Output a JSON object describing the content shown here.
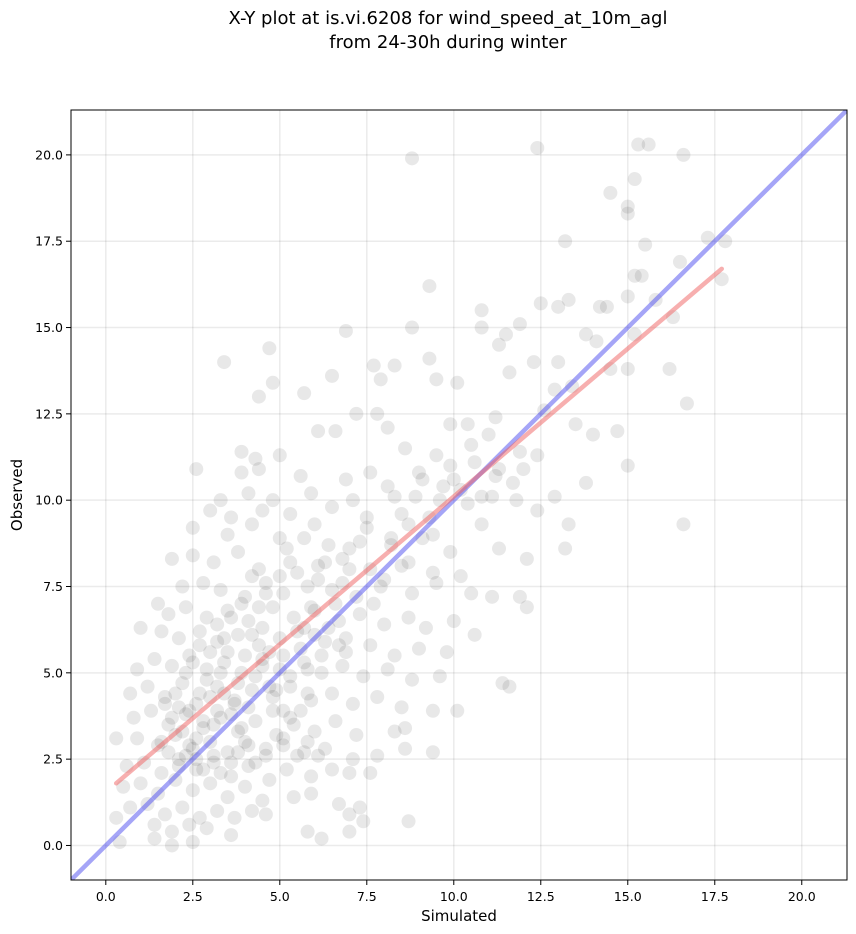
{
  "chart_data": {
    "type": "scatter",
    "title_line1": "X-Y plot at is.vi.6208 for wind_speed_at_10m_agl",
    "title_line2": "from 24-30h during winter",
    "xlabel": "Simulated",
    "ylabel": "Observed",
    "xlim": [
      -1.0,
      21.3
    ],
    "ylim": [
      -1.0,
      21.3
    ],
    "xticks": [
      "0.0",
      "2.5",
      "5.0",
      "7.5",
      "10.0",
      "12.5",
      "15.0",
      "17.5",
      "20.0"
    ],
    "yticks": [
      "0.0",
      "2.5",
      "5.0",
      "7.5",
      "10.0",
      "12.5",
      "15.0",
      "17.5",
      "20.0"
    ],
    "grid": true,
    "colors": {
      "points": "#000000",
      "one_to_one_line": "#4c4cf0",
      "fit_line": "#f06060"
    },
    "lines": [
      {
        "role": "one-to-one",
        "x": [
          -1.0,
          21.3
        ],
        "y": [
          -1.0,
          21.3
        ]
      },
      {
        "role": "fit",
        "x": [
          0.3,
          17.7
        ],
        "y": [
          1.8,
          16.7
        ]
      }
    ],
    "points": [
      [
        8.8,
        19.9
      ],
      [
        12.4,
        20.2
      ],
      [
        15.3,
        20.3
      ],
      [
        15.6,
        20.3
      ],
      [
        16.6,
        20.0
      ],
      [
        15.2,
        19.3
      ],
      [
        14.5,
        18.9
      ],
      [
        15.0,
        18.5
      ],
      [
        15.0,
        18.3
      ],
      [
        17.3,
        17.6
      ],
      [
        17.8,
        17.5
      ],
      [
        13.2,
        17.5
      ],
      [
        15.5,
        17.4
      ],
      [
        16.5,
        16.9
      ],
      [
        15.2,
        16.5
      ],
      [
        15.4,
        16.5
      ],
      [
        9.3,
        16.2
      ],
      [
        17.7,
        16.4
      ],
      [
        15.0,
        15.9
      ],
      [
        15.8,
        15.8
      ],
      [
        12.5,
        15.7
      ],
      [
        13.3,
        15.8
      ],
      [
        14.2,
        15.6
      ],
      [
        14.4,
        15.6
      ],
      [
        13.0,
        15.6
      ],
      [
        10.8,
        15.5
      ],
      [
        16.3,
        15.3
      ],
      [
        11.9,
        15.1
      ],
      [
        10.8,
        15.0
      ],
      [
        8.8,
        15.0
      ],
      [
        6.9,
        14.9
      ],
      [
        11.5,
        14.8
      ],
      [
        13.8,
        14.8
      ],
      [
        15.2,
        14.8
      ],
      [
        14.1,
        14.6
      ],
      [
        11.3,
        14.5
      ],
      [
        4.7,
        14.4
      ],
      [
        9.3,
        14.1
      ],
      [
        3.4,
        14.0
      ],
      [
        13.0,
        14.0
      ],
      [
        12.3,
        14.0
      ],
      [
        11.6,
        13.7
      ],
      [
        7.7,
        13.9
      ],
      [
        8.3,
        13.9
      ],
      [
        14.5,
        13.8
      ],
      [
        15.0,
        13.8
      ],
      [
        16.2,
        13.8
      ],
      [
        5.7,
        13.1
      ],
      [
        6.5,
        13.6
      ],
      [
        7.9,
        13.5
      ],
      [
        4.4,
        13.0
      ],
      [
        4.8,
        13.4
      ],
      [
        9.5,
        13.5
      ],
      [
        10.1,
        13.4
      ],
      [
        12.9,
        13.2
      ],
      [
        13.4,
        13.3
      ],
      [
        16.7,
        12.8
      ],
      [
        7.2,
        12.5
      ],
      [
        7.8,
        12.5
      ],
      [
        12.6,
        12.6
      ],
      [
        11.2,
        12.4
      ],
      [
        10.4,
        12.2
      ],
      [
        9.9,
        12.2
      ],
      [
        6.1,
        12.0
      ],
      [
        6.6,
        12.0
      ],
      [
        8.1,
        12.1
      ],
      [
        13.5,
        12.2
      ],
      [
        14.7,
        12.0
      ],
      [
        14.0,
        11.9
      ],
      [
        3.9,
        11.4
      ],
      [
        4.3,
        11.2
      ],
      [
        5.0,
        11.3
      ],
      [
        8.6,
        11.5
      ],
      [
        9.5,
        11.3
      ],
      [
        10.6,
        11.1
      ],
      [
        11.9,
        11.4
      ],
      [
        12.4,
        11.3
      ],
      [
        3.9,
        10.8
      ],
      [
        4.4,
        10.9
      ],
      [
        5.6,
        10.7
      ],
      [
        6.9,
        10.6
      ],
      [
        7.6,
        10.8
      ],
      [
        8.1,
        10.4
      ],
      [
        9.0,
        10.8
      ],
      [
        10.0,
        10.6
      ],
      [
        11.2,
        10.7
      ],
      [
        11.7,
        10.5
      ],
      [
        12.0,
        10.9
      ],
      [
        13.8,
        10.5
      ],
      [
        15.0,
        11.0
      ],
      [
        2.6,
        10.9
      ],
      [
        3.3,
        10.0
      ],
      [
        4.1,
        10.2
      ],
      [
        4.8,
        10.0
      ],
      [
        5.9,
        10.2
      ],
      [
        6.5,
        9.8
      ],
      [
        7.1,
        10.0
      ],
      [
        8.3,
        10.1
      ],
      [
        9.6,
        10.0
      ],
      [
        10.4,
        9.9
      ],
      [
        11.1,
        10.1
      ],
      [
        11.8,
        10.0
      ],
      [
        12.9,
        10.1
      ],
      [
        3.0,
        9.7
      ],
      [
        3.6,
        9.5
      ],
      [
        4.5,
        9.7
      ],
      [
        5.3,
        9.6
      ],
      [
        6.0,
        9.3
      ],
      [
        7.5,
        9.2
      ],
      [
        8.7,
        9.3
      ],
      [
        9.3,
        9.5
      ],
      [
        10.8,
        9.3
      ],
      [
        12.4,
        9.7
      ],
      [
        13.3,
        9.3
      ],
      [
        16.6,
        9.3
      ],
      [
        2.5,
        9.2
      ],
      [
        3.5,
        9.0
      ],
      [
        4.2,
        9.3
      ],
      [
        5.0,
        8.9
      ],
      [
        5.7,
        8.9
      ],
      [
        6.4,
        8.7
      ],
      [
        7.0,
        8.6
      ],
      [
        8.2,
        8.7
      ],
      [
        9.1,
        8.9
      ],
      [
        9.9,
        8.5
      ],
      [
        11.3,
        8.6
      ],
      [
        13.2,
        8.6
      ],
      [
        12.1,
        8.3
      ],
      [
        1.9,
        8.3
      ],
      [
        2.5,
        8.4
      ],
      [
        3.1,
        8.2
      ],
      [
        3.8,
        8.5
      ],
      [
        4.4,
        8.0
      ],
      [
        5.3,
        8.2
      ],
      [
        6.1,
        8.1
      ],
      [
        6.8,
        8.3
      ],
      [
        7.6,
        8.0
      ],
      [
        8.5,
        8.1
      ],
      [
        9.4,
        7.9
      ],
      [
        10.2,
        7.8
      ],
      [
        1.5,
        7.0
      ],
      [
        2.2,
        7.5
      ],
      [
        2.8,
        7.6
      ],
      [
        3.3,
        7.4
      ],
      [
        4.0,
        7.2
      ],
      [
        4.6,
        7.6
      ],
      [
        5.1,
        7.3
      ],
      [
        5.8,
        7.5
      ],
      [
        6.5,
        7.4
      ],
      [
        7.2,
        7.2
      ],
      [
        7.9,
        7.5
      ],
      [
        8.8,
        7.3
      ],
      [
        9.5,
        7.6
      ],
      [
        10.5,
        7.3
      ],
      [
        11.1,
        7.2
      ],
      [
        11.9,
        7.2
      ],
      [
        12.1,
        6.9
      ],
      [
        1.8,
        6.7
      ],
      [
        2.3,
        6.9
      ],
      [
        2.9,
        6.6
      ],
      [
        3.5,
        6.8
      ],
      [
        4.1,
        6.5
      ],
      [
        4.8,
        6.9
      ],
      [
        5.4,
        6.6
      ],
      [
        6.0,
        6.8
      ],
      [
        6.7,
        6.5
      ],
      [
        7.3,
        6.7
      ],
      [
        8.0,
        6.4
      ],
      [
        8.7,
        6.6
      ],
      [
        9.2,
        6.3
      ],
      [
        10.0,
        6.5
      ],
      [
        10.6,
        6.1
      ],
      [
        1.0,
        6.3
      ],
      [
        1.6,
        6.2
      ],
      [
        2.1,
        6.0
      ],
      [
        2.7,
        6.2
      ],
      [
        3.2,
        5.9
      ],
      [
        3.8,
        6.1
      ],
      [
        4.4,
        5.8
      ],
      [
        5.0,
        6.0
      ],
      [
        5.6,
        5.7
      ],
      [
        6.3,
        5.9
      ],
      [
        6.9,
        5.6
      ],
      [
        7.6,
        5.8
      ],
      [
        8.3,
        5.5
      ],
      [
        9.0,
        5.7
      ],
      [
        9.8,
        5.6
      ],
      [
        0.9,
        5.1
      ],
      [
        1.4,
        5.4
      ],
      [
        1.9,
        5.2
      ],
      [
        2.4,
        5.5
      ],
      [
        2.9,
        5.1
      ],
      [
        3.4,
        5.3
      ],
      [
        3.9,
        5.0
      ],
      [
        4.5,
        5.4
      ],
      [
        5.0,
        5.1
      ],
      [
        5.7,
        5.3
      ],
      [
        6.2,
        5.0
      ],
      [
        6.8,
        5.2
      ],
      [
        7.4,
        4.9
      ],
      [
        8.1,
        5.1
      ],
      [
        8.8,
        4.8
      ],
      [
        9.6,
        4.9
      ],
      [
        0.7,
        4.4
      ],
      [
        1.2,
        4.6
      ],
      [
        1.7,
        4.3
      ],
      [
        2.2,
        4.7
      ],
      [
        2.7,
        4.4
      ],
      [
        3.2,
        4.6
      ],
      [
        3.7,
        4.2
      ],
      [
        4.2,
        4.5
      ],
      [
        4.8,
        4.3
      ],
      [
        5.3,
        4.6
      ],
      [
        5.9,
        4.2
      ],
      [
        6.5,
        4.4
      ],
      [
        7.1,
        4.1
      ],
      [
        7.8,
        4.3
      ],
      [
        8.5,
        4.0
      ],
      [
        9.4,
        3.9
      ],
      [
        10.1,
        3.9
      ],
      [
        11.4,
        4.7
      ],
      [
        11.6,
        4.6
      ],
      [
        0.8,
        3.7
      ],
      [
        1.3,
        3.9
      ],
      [
        1.8,
        3.5
      ],
      [
        2.3,
        3.8
      ],
      [
        2.8,
        3.4
      ],
      [
        3.3,
        3.7
      ],
      [
        3.8,
        3.3
      ],
      [
        4.3,
        3.6
      ],
      [
        4.9,
        3.2
      ],
      [
        5.4,
        3.5
      ],
      [
        6.0,
        3.3
      ],
      [
        6.6,
        3.6
      ],
      [
        7.2,
        3.2
      ],
      [
        8.3,
        3.3
      ],
      [
        8.6,
        3.4
      ],
      [
        0.3,
        3.1
      ],
      [
        0.9,
        3.1
      ],
      [
        1.5,
        2.9
      ],
      [
        2.0,
        3.2
      ],
      [
        2.5,
        2.8
      ],
      [
        3.0,
        3.0
      ],
      [
        3.5,
        2.7
      ],
      [
        4.0,
        3.0
      ],
      [
        4.6,
        2.6
      ],
      [
        5.1,
        2.9
      ],
      [
        5.7,
        2.7
      ],
      [
        6.3,
        2.8
      ],
      [
        7.1,
        2.5
      ],
      [
        7.8,
        2.6
      ],
      [
        8.6,
        2.8
      ],
      [
        9.4,
        2.7
      ],
      [
        0.6,
        2.3
      ],
      [
        1.1,
        2.4
      ],
      [
        1.6,
        2.1
      ],
      [
        2.1,
        2.5
      ],
      [
        2.6,
        2.2
      ],
      [
        3.1,
        2.4
      ],
      [
        3.6,
        2.0
      ],
      [
        4.1,
        2.3
      ],
      [
        4.7,
        1.9
      ],
      [
        5.2,
        2.2
      ],
      [
        5.9,
        2.0
      ],
      [
        6.5,
        2.2
      ],
      [
        7.0,
        2.1
      ],
      [
        7.6,
        2.1
      ],
      [
        0.5,
        1.7
      ],
      [
        1.0,
        1.8
      ],
      [
        1.5,
        1.5
      ],
      [
        2.0,
        1.9
      ],
      [
        2.5,
        1.6
      ],
      [
        3.0,
        1.8
      ],
      [
        3.5,
        1.4
      ],
      [
        4.0,
        1.7
      ],
      [
        4.5,
        1.3
      ],
      [
        5.4,
        1.4
      ],
      [
        5.9,
        1.5
      ],
      [
        6.7,
        1.2
      ],
      [
        7.3,
        1.1
      ],
      [
        0.7,
        1.1
      ],
      [
        1.2,
        1.2
      ],
      [
        1.7,
        0.9
      ],
      [
        2.2,
        1.1
      ],
      [
        2.7,
        0.8
      ],
      [
        3.2,
        1.0
      ],
      [
        3.7,
        0.8
      ],
      [
        4.2,
        1.0
      ],
      [
        4.6,
        0.9
      ],
      [
        7.0,
        0.9
      ],
      [
        7.4,
        0.7
      ],
      [
        0.3,
        0.8
      ],
      [
        1.4,
        0.6
      ],
      [
        1.9,
        0.4
      ],
      [
        2.4,
        0.6
      ],
      [
        2.9,
        0.5
      ],
      [
        5.8,
        0.4
      ],
      [
        6.2,
        0.2
      ],
      [
        7.0,
        0.4
      ],
      [
        8.7,
        0.7
      ],
      [
        0.4,
        0.1
      ],
      [
        1.4,
        0.2
      ],
      [
        1.9,
        0.0
      ],
      [
        2.5,
        0.1
      ],
      [
        3.6,
        0.3
      ],
      [
        2.4,
        3.9
      ],
      [
        2.6,
        4.1
      ],
      [
        2.8,
        3.6
      ],
      [
        3.0,
        4.3
      ],
      [
        3.2,
        3.9
      ],
      [
        3.4,
        4.4
      ],
      [
        3.6,
        3.8
      ],
      [
        3.8,
        4.7
      ],
      [
        3.1,
        3.5
      ],
      [
        2.9,
        4.8
      ],
      [
        3.3,
        5.0
      ],
      [
        3.5,
        5.6
      ],
      [
        3.7,
        4.1
      ],
      [
        3.9,
        3.4
      ],
      [
        4.1,
        4.0
      ],
      [
        4.3,
        4.9
      ],
      [
        4.5,
        5.2
      ],
      [
        4.7,
        4.6
      ],
      [
        2.2,
        3.3
      ],
      [
        2.4,
        2.9
      ],
      [
        2.6,
        3.1
      ],
      [
        2.1,
        4.0
      ],
      [
        1.9,
        3.7
      ],
      [
        1.7,
        4.1
      ],
      [
        2.0,
        4.4
      ],
      [
        2.3,
        5.0
      ],
      [
        2.5,
        5.3
      ],
      [
        2.7,
        5.8
      ],
      [
        3.0,
        5.6
      ],
      [
        3.2,
        6.4
      ],
      [
        3.4,
        6.0
      ],
      [
        3.6,
        6.6
      ],
      [
        3.9,
        7.0
      ],
      [
        4.2,
        7.8
      ],
      [
        4.4,
        6.9
      ],
      [
        4.6,
        7.3
      ],
      [
        5.0,
        7.8
      ],
      [
        5.2,
        8.6
      ],
      [
        5.5,
        7.9
      ],
      [
        5.7,
        6.3
      ],
      [
        5.9,
        6.9
      ],
      [
        6.1,
        7.7
      ],
      [
        6.3,
        8.2
      ],
      [
        6.6,
        7.0
      ],
      [
        6.8,
        7.6
      ],
      [
        7.0,
        8.0
      ],
      [
        7.3,
        8.8
      ],
      [
        7.5,
        9.5
      ],
      [
        7.7,
        7.0
      ],
      [
        8.0,
        7.7
      ],
      [
        8.2,
        8.9
      ],
      [
        8.5,
        9.6
      ],
      [
        8.7,
        8.2
      ],
      [
        8.9,
        10.1
      ],
      [
        9.1,
        10.6
      ],
      [
        9.4,
        9.0
      ],
      [
        9.7,
        10.4
      ],
      [
        9.9,
        11.0
      ],
      [
        10.2,
        10.3
      ],
      [
        10.5,
        11.6
      ],
      [
        10.8,
        10.1
      ],
      [
        11.0,
        11.9
      ],
      [
        11.3,
        10.9
      ],
      [
        5.1,
        5.5
      ],
      [
        5.3,
        4.9
      ],
      [
        5.5,
        6.2
      ],
      [
        5.8,
        5.1
      ],
      [
        6.0,
        6.1
      ],
      [
        6.2,
        5.5
      ],
      [
        6.4,
        6.3
      ],
      [
        6.7,
        5.8
      ],
      [
        6.9,
        6.0
      ],
      [
        4.0,
        5.5
      ],
      [
        4.2,
        6.1
      ],
      [
        4.5,
        6.3
      ],
      [
        4.7,
        5.6
      ],
      [
        4.9,
        4.5
      ],
      [
        5.1,
        3.9
      ],
      [
        5.3,
        3.7
      ],
      [
        5.6,
        3.9
      ],
      [
        5.8,
        4.4
      ],
      [
        1.6,
        3.0
      ],
      [
        1.8,
        2.7
      ],
      [
        2.1,
        2.3
      ],
      [
        2.3,
        2.6
      ],
      [
        2.6,
        2.5
      ],
      [
        2.8,
        2.2
      ],
      [
        3.1,
        2.6
      ],
      [
        3.3,
        2.1
      ],
      [
        3.6,
        2.4
      ],
      [
        3.8,
        2.7
      ],
      [
        4.1,
        2.9
      ],
      [
        4.3,
        2.4
      ],
      [
        4.6,
        2.8
      ],
      [
        4.8,
        3.9
      ],
      [
        5.1,
        3.1
      ],
      [
        5.5,
        2.6
      ],
      [
        5.8,
        3.0
      ],
      [
        6.1,
        2.6
      ]
    ]
  }
}
